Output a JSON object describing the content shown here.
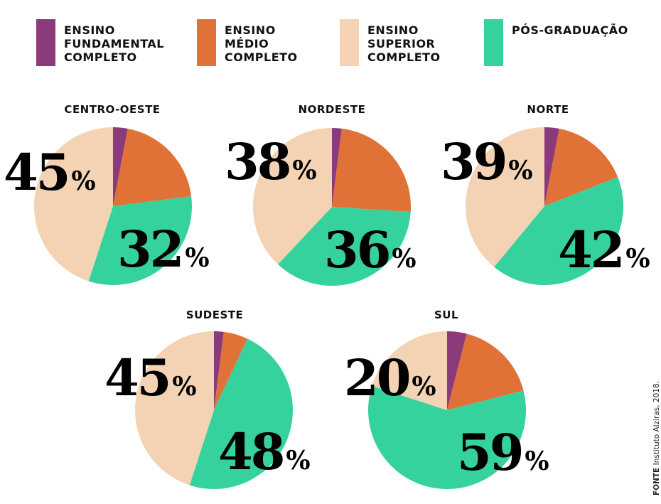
{
  "legend": [
    {
      "label": "ENSINO\nFUNDAMENTAL\nCOMPLETO",
      "color": "#8b3a7a"
    },
    {
      "label": "ENSINO\nMÉDIO\nCOMPLETO",
      "color": "#e07238"
    },
    {
      "label": "ENSINO\nSUPERIOR\nCOMPLETO",
      "color": "#f3d3b4"
    },
    {
      "label": "PÓS-GRADUAÇÃO",
      "color": "#35d29e"
    }
  ],
  "regions": [
    {
      "name": "CENTRO-OESTE",
      "superior_label": "45",
      "pos_label": "32",
      "pct_sign": "%"
    },
    {
      "name": "NORDESTE",
      "superior_label": "38",
      "pos_label": "36",
      "pct_sign": "%"
    },
    {
      "name": "NORTE",
      "superior_label": "39",
      "pos_label": "42",
      "pct_sign": "%"
    },
    {
      "name": "SUDESTE",
      "superior_label": "45",
      "pos_label": "48",
      "pct_sign": "%"
    },
    {
      "name": "SUL",
      "superior_label": "20",
      "pos_label": "59",
      "pct_sign": "%"
    }
  ],
  "source": {
    "label": "FONTE",
    "text": " Instituto Alziras, 2018."
  },
  "chart_data": [
    {
      "type": "pie",
      "title": "CENTRO-OESTE",
      "labels": [
        "Ensino Fundamental Completo",
        "Ensino Médio Completo",
        "Ensino Superior Completo",
        "Pós-Graduação"
      ],
      "values": [
        3,
        20,
        45,
        32
      ],
      "annotations": [
        "45%",
        "32%"
      ],
      "colors": [
        "#8b3a7a",
        "#e07238",
        "#f3d3b4",
        "#35d29e"
      ]
    },
    {
      "type": "pie",
      "title": "NORDESTE",
      "labels": [
        "Ensino Fundamental Completo",
        "Ensino Médio Completo",
        "Ensino Superior Completo",
        "Pós-Graduação"
      ],
      "values": [
        2,
        24,
        38,
        36
      ],
      "annotations": [
        "38%",
        "36%"
      ],
      "colors": [
        "#8b3a7a",
        "#e07238",
        "#f3d3b4",
        "#35d29e"
      ]
    },
    {
      "type": "pie",
      "title": "NORTE",
      "labels": [
        "Ensino Fundamental Completo",
        "Ensino Médio Completo",
        "Ensino Superior Completo",
        "Pós-Graduação"
      ],
      "values": [
        3,
        16,
        39,
        42
      ],
      "annotations": [
        "39%",
        "42%"
      ],
      "colors": [
        "#8b3a7a",
        "#e07238",
        "#f3d3b4",
        "#35d29e"
      ]
    },
    {
      "type": "pie",
      "title": "SUDESTE",
      "labels": [
        "Ensino Fundamental Completo",
        "Ensino Médio Completo",
        "Ensino Superior Completo",
        "Pós-Graduação"
      ],
      "values": [
        2,
        5,
        45,
        48
      ],
      "annotations": [
        "45%",
        "48%"
      ],
      "colors": [
        "#8b3a7a",
        "#e07238",
        "#f3d3b4",
        "#35d29e"
      ]
    },
    {
      "type": "pie",
      "title": "SUL",
      "labels": [
        "Ensino Fundamental Completo",
        "Ensino Médio Completo",
        "Ensino Superior Completo",
        "Pós-Graduação"
      ],
      "values": [
        4,
        17,
        20,
        59
      ],
      "annotations": [
        "20%",
        "59%"
      ],
      "colors": [
        "#8b3a7a",
        "#e07238",
        "#f3d3b4",
        "#35d29e"
      ]
    }
  ]
}
